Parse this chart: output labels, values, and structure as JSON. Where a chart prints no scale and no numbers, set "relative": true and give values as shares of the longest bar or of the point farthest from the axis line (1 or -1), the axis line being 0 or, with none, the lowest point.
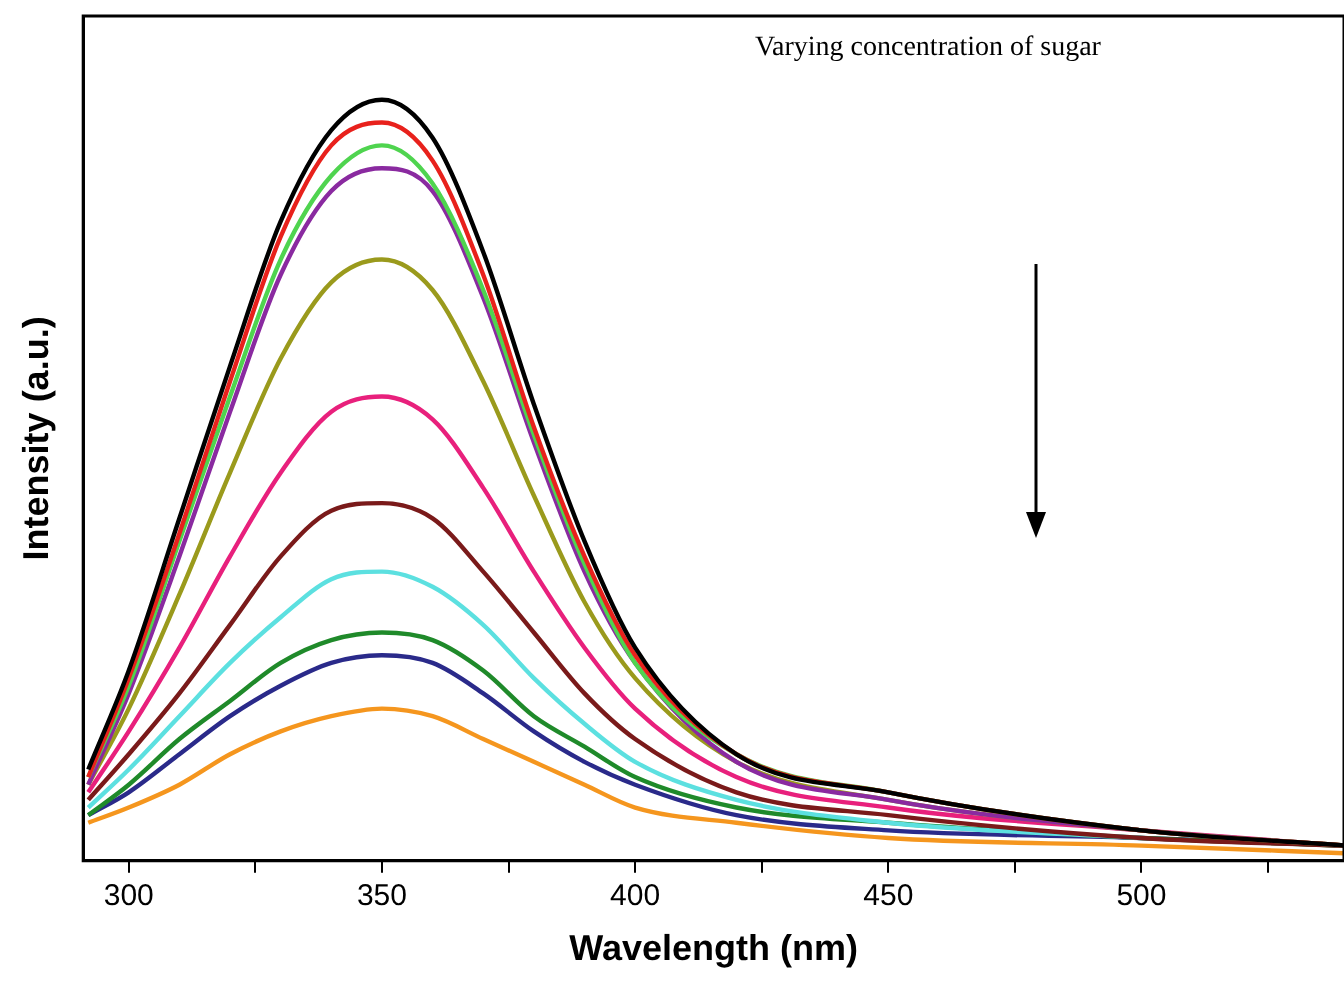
{
  "chart_data": {
    "type": "line",
    "relative": true,
    "xlabel": "Wavelength (nm)",
    "ylabel": "Intensity (a.u.)",
    "annotations": [
      "Varying concentration of sugar"
    ],
    "x": [
      292,
      300,
      310,
      320,
      330,
      340,
      350,
      360,
      370,
      380,
      390,
      400,
      420,
      450,
      500,
      540
    ],
    "xlim": [
      291,
      540
    ],
    "xticks": [
      300,
      {
        "value": 325,
        "label": null
      },
      350,
      {
        "value": 375,
        "label": null
      },
      400,
      {
        "value": 425,
        "label": null
      },
      450,
      {
        "value": 475,
        "label": null
      },
      500,
      {
        "value": 525,
        "label": null
      }
    ],
    "grid": false,
    "legend": false,
    "marker": "none",
    "line_style": "solid",
    "series": [
      {
        "color": "#000000",
        "values": [
          0.12,
          0.25,
          0.45,
          0.65,
          0.84,
          0.96,
          1.0,
          0.95,
          0.8,
          0.6,
          0.42,
          0.28,
          0.14,
          0.09,
          0.04,
          0.02
        ]
      },
      {
        "color": "#e8211c",
        "values": [
          0.11,
          0.24,
          0.43,
          0.63,
          0.82,
          0.94,
          0.97,
          0.92,
          0.77,
          0.57,
          0.4,
          0.27,
          0.14,
          0.09,
          0.04,
          0.02
        ]
      },
      {
        "color": "#4fd44f",
        "values": [
          0.11,
          0.23,
          0.42,
          0.61,
          0.79,
          0.9,
          0.94,
          0.89,
          0.75,
          0.56,
          0.39,
          0.26,
          0.14,
          0.09,
          0.04,
          0.02
        ]
      },
      {
        "color": "#8a2aa0",
        "values": [
          0.1,
          0.22,
          0.4,
          0.59,
          0.77,
          0.88,
          0.91,
          0.88,
          0.74,
          0.55,
          0.38,
          0.26,
          0.13,
          0.08,
          0.04,
          0.02
        ]
      },
      {
        "color": "#9a9a1c",
        "values": [
          0.1,
          0.2,
          0.35,
          0.51,
          0.66,
          0.76,
          0.79,
          0.75,
          0.63,
          0.48,
          0.34,
          0.24,
          0.13,
          0.08,
          0.04,
          0.02
        ]
      },
      {
        "color": "#e8207c",
        "values": [
          0.09,
          0.17,
          0.28,
          0.4,
          0.51,
          0.59,
          0.61,
          0.58,
          0.49,
          0.38,
          0.28,
          0.2,
          0.11,
          0.07,
          0.04,
          0.02
        ]
      },
      {
        "color": "#7a1a1a",
        "values": [
          0.08,
          0.14,
          0.22,
          0.31,
          0.4,
          0.46,
          0.47,
          0.45,
          0.38,
          0.3,
          0.22,
          0.16,
          0.09,
          0.06,
          0.03,
          0.02
        ]
      },
      {
        "color": "#5ce0e0",
        "values": [
          0.07,
          0.12,
          0.19,
          0.26,
          0.32,
          0.37,
          0.38,
          0.36,
          0.31,
          0.24,
          0.18,
          0.13,
          0.08,
          0.05,
          0.03,
          null
        ]
      },
      {
        "color": "#1f8a2a",
        "values": [
          0.06,
          0.1,
          0.16,
          0.21,
          0.26,
          0.29,
          0.3,
          0.29,
          0.25,
          0.19,
          0.15,
          0.11,
          0.07,
          0.05,
          0.03,
          0.02
        ]
      },
      {
        "color": "#2a2a8a",
        "values": [
          0.06,
          0.09,
          0.14,
          0.19,
          0.23,
          0.26,
          0.27,
          0.26,
          0.22,
          0.17,
          0.13,
          0.1,
          0.06,
          0.04,
          0.03,
          0.02
        ]
      },
      {
        "color": "#f5961e",
        "values": [
          0.05,
          0.07,
          0.1,
          0.14,
          0.17,
          0.19,
          0.2,
          0.19,
          0.16,
          0.13,
          0.1,
          0.07,
          0.05,
          0.03,
          0.02,
          0.01
        ]
      }
    ]
  }
}
